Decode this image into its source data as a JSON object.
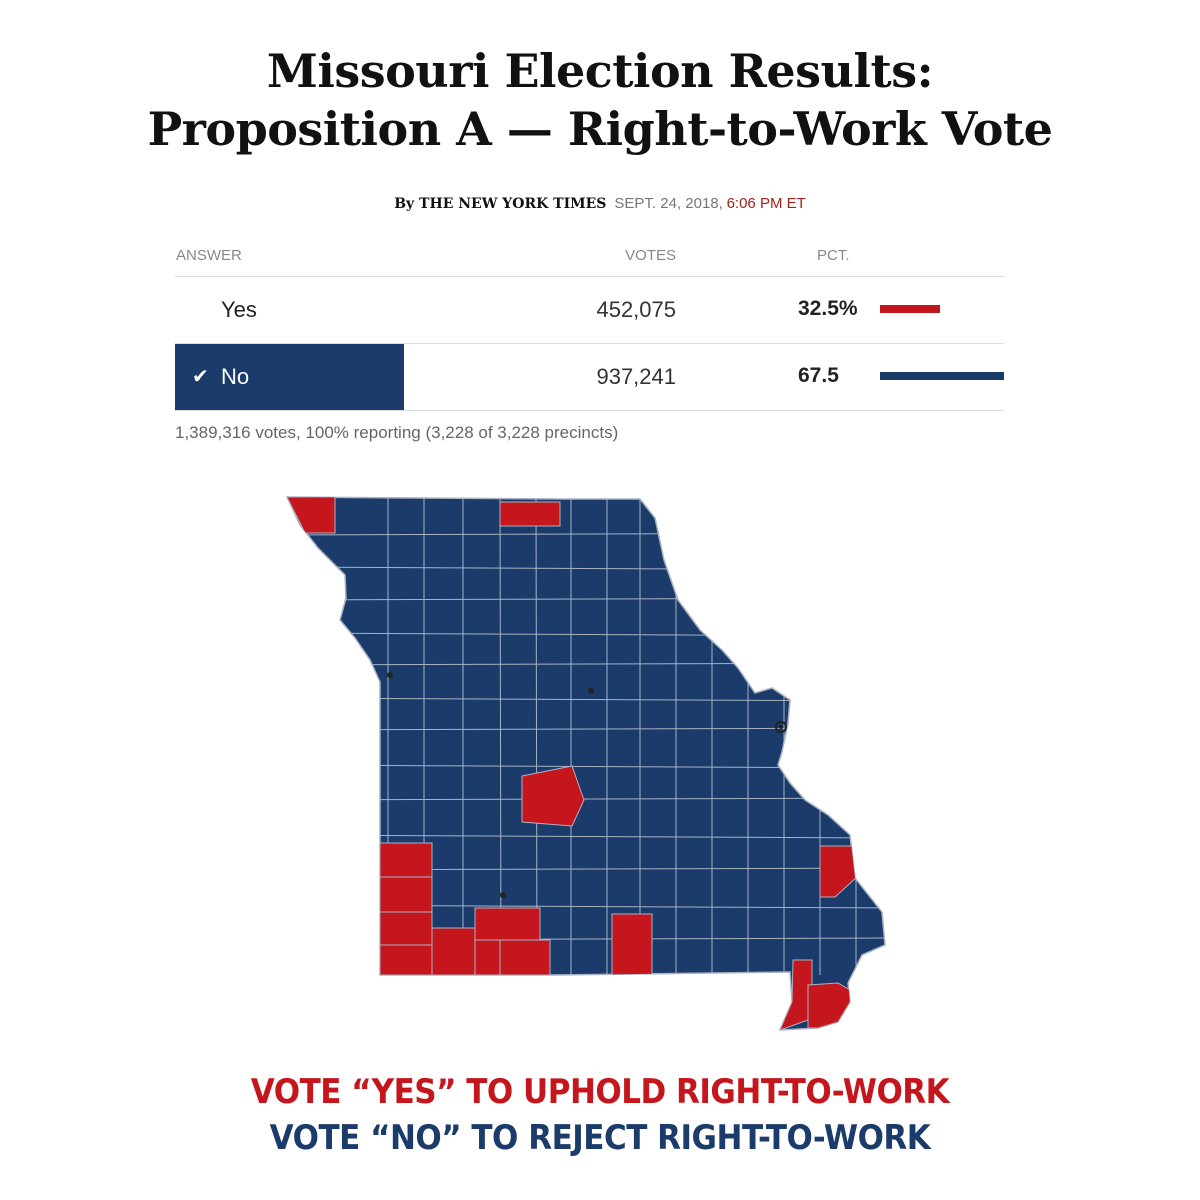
{
  "headline": {
    "line1": "Missouri Election Results:",
    "line2": "Proposition A — Right-to-Work Vote"
  },
  "byline": {
    "by": "By THE NEW YORK TIMES",
    "date": "SEPT. 24, 2018,",
    "time": "6:06 PM ET"
  },
  "results_table": {
    "headers": {
      "answer": "ANSWER",
      "votes": "VOTES",
      "pct": "PCT."
    },
    "rows": [
      {
        "answer": "Yes",
        "votes": "452,075",
        "pct": "32.5%",
        "pct_value": 32.5,
        "color": "#c4161c",
        "winner": false
      },
      {
        "answer": "No",
        "votes": "937,241",
        "pct": "67.5",
        "pct_value": 67.5,
        "color": "#1b3b6b",
        "winner": true,
        "check_icon": "checkmark-icon"
      }
    ],
    "summary": "1,389,316 votes, 100% reporting (3,228 of 3,228 precincts)"
  },
  "map": {
    "region": "Missouri counties",
    "colors": {
      "yes": "#c4161c",
      "no": "#1b3b6b",
      "border": "#a9b3c4"
    },
    "city_marker_icon": "city-dot-icon"
  },
  "call_to_action": {
    "yes_line": "VOTE “YES” TO UPHOLD RIGHT-TO-WORK",
    "no_line": "VOTE “NO” TO REJECT RIGHT-TO-WORK"
  }
}
